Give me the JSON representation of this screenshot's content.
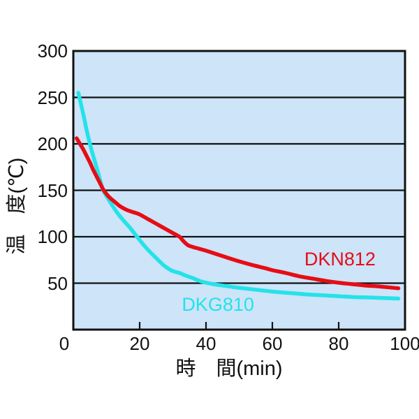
{
  "chart_data": {
    "type": "line",
    "title": "",
    "xlabel": "時　間(min)",
    "ylabel": "温　度(℃)",
    "xlim": [
      0,
      100
    ],
    "ylim": [
      0,
      300
    ],
    "x_ticks": [
      0,
      20,
      40,
      60,
      80,
      100
    ],
    "y_ticks": [
      50,
      100,
      150,
      200,
      250,
      300
    ],
    "grid": "horizontal-only",
    "legend_position": "inline-labels-on-plot",
    "colors": {
      "plot_bg": "#cde4f9",
      "axis": "#111111",
      "page_bg": "#ffffff"
    },
    "series": [
      {
        "name": "DKG810",
        "label": "DKG810",
        "color": "#25e2e9",
        "label_anchor": {
          "x": 43.6,
          "y": 27
        },
        "points": [
          [
            1.5,
            255
          ],
          [
            3,
            232
          ],
          [
            4,
            215
          ],
          [
            5,
            200
          ],
          [
            6,
            187
          ],
          [
            7,
            175
          ],
          [
            8,
            162
          ],
          [
            9,
            150
          ],
          [
            11,
            138
          ],
          [
            13,
            127
          ],
          [
            15,
            118
          ],
          [
            17,
            110
          ],
          [
            19,
            101
          ],
          [
            21,
            92
          ],
          [
            23,
            84
          ],
          [
            25,
            77
          ],
          [
            27,
            70
          ],
          [
            28.5,
            66
          ],
          [
            30,
            63
          ],
          [
            32,
            61
          ],
          [
            34,
            58
          ],
          [
            36,
            55.5
          ],
          [
            38,
            52.5
          ],
          [
            40,
            50.5
          ],
          [
            43,
            48.5
          ],
          [
            46,
            47
          ],
          [
            50,
            45
          ],
          [
            55,
            43
          ],
          [
            60,
            41
          ],
          [
            65,
            39.5
          ],
          [
            70,
            38
          ],
          [
            75,
            37
          ],
          [
            80,
            36
          ],
          [
            85,
            35
          ],
          [
            90,
            34.5
          ],
          [
            98,
            33.5
          ]
        ]
      },
      {
        "name": "DKN812",
        "label": "DKN812",
        "color": "#e60d15",
        "label_anchor": {
          "x": 80.4,
          "y": 76
        },
        "points": [
          [
            1,
            206
          ],
          [
            2,
            200
          ],
          [
            3,
            194
          ],
          [
            4,
            187
          ],
          [
            5,
            180
          ],
          [
            6,
            172
          ],
          [
            7,
            165
          ],
          [
            8,
            158
          ],
          [
            9,
            151
          ],
          [
            10,
            146
          ],
          [
            11,
            142
          ],
          [
            12,
            139
          ],
          [
            13,
            136
          ],
          [
            14,
            133
          ],
          [
            16,
            129
          ],
          [
            18,
            126.5
          ],
          [
            20,
            124
          ],
          [
            22,
            120
          ],
          [
            24,
            116
          ],
          [
            26,
            112
          ],
          [
            28,
            108
          ],
          [
            30,
            104
          ],
          [
            32,
            100
          ],
          [
            33,
            96
          ],
          [
            34.5,
            91
          ],
          [
            36,
            89
          ],
          [
            38,
            87
          ],
          [
            40,
            85
          ],
          [
            43,
            81.5
          ],
          [
            46,
            78
          ],
          [
            50,
            73.5
          ],
          [
            54,
            69.5
          ],
          [
            58,
            66
          ],
          [
            60,
            64
          ],
          [
            64,
            61
          ],
          [
            68,
            57.5
          ],
          [
            72,
            55
          ],
          [
            76,
            52.5
          ],
          [
            80,
            50.5
          ],
          [
            84,
            49
          ],
          [
            88,
            47.5
          ],
          [
            92,
            46.5
          ],
          [
            98,
            44.5
          ]
        ]
      }
    ]
  }
}
